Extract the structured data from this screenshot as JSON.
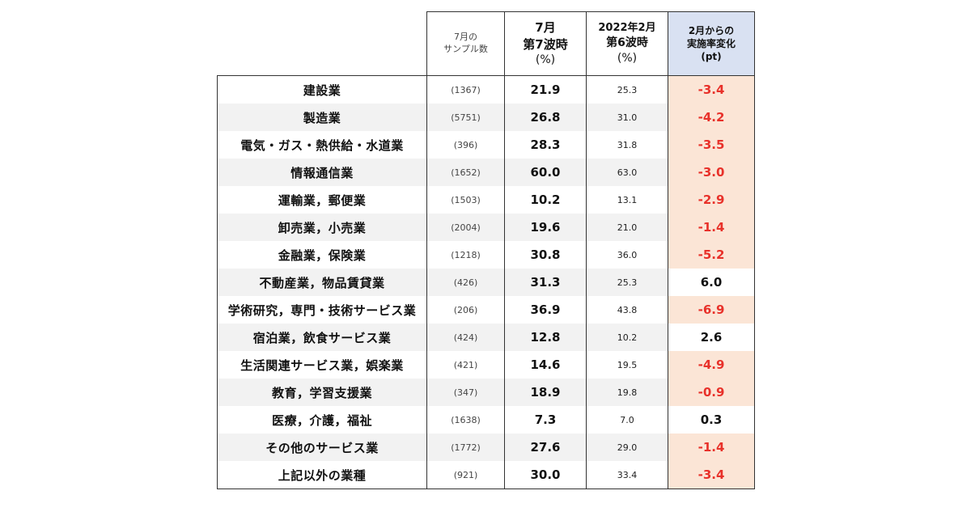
{
  "header": {
    "sample_line1": "7月の",
    "sample_line2": "サンプル数",
    "july_line1": "7月",
    "july_line2": "第7波時",
    "july_unit": "(%)",
    "feb_line1": "2022年2月",
    "feb_line2": "第6波時",
    "feb_unit": "(%)",
    "change_line1": "2月からの",
    "change_line2": "実施率変化",
    "change_unit": "(pt)"
  },
  "colors": {
    "negative_text": "#e8312a",
    "negative_fill": "#fbe5d6",
    "header_change_fill": "#d9e1f2",
    "stripe_fill": "#f2f2f2"
  },
  "chart_data": {
    "type": "table",
    "columns": [
      "",
      "7月の サンプル数",
      "7月 第7波時 (%)",
      "2022年2月 第6波時 (%)",
      "2月からの 実施率変化 (pt)"
    ],
    "rows": [
      {
        "industry": "建設業",
        "sample": "(1367)",
        "july": "21.9",
        "feb": "25.3",
        "change": "-3.4"
      },
      {
        "industry": "製造業",
        "sample": "(5751)",
        "july": "26.8",
        "feb": "31.0",
        "change": "-4.2"
      },
      {
        "industry": "電気・ガス・熱供給・水道業",
        "sample": "(396)",
        "july": "28.3",
        "feb": "31.8",
        "change": "-3.5"
      },
      {
        "industry": "情報通信業",
        "sample": "(1652)",
        "july": "60.0",
        "feb": "63.0",
        "change": "-3.0"
      },
      {
        "industry": "運輸業，郵便業",
        "sample": "(1503)",
        "july": "10.2",
        "feb": "13.1",
        "change": "-2.9"
      },
      {
        "industry": "卸売業，小売業",
        "sample": "(2004)",
        "july": "19.6",
        "feb": "21.0",
        "change": "-1.4"
      },
      {
        "industry": "金融業，保険業",
        "sample": "(1218)",
        "july": "30.8",
        "feb": "36.0",
        "change": "-5.2"
      },
      {
        "industry": "不動産業，物品賃貸業",
        "sample": "(426)",
        "july": "31.3",
        "feb": "25.3",
        "change": "6.0"
      },
      {
        "industry": "学術研究，専門・技術サービス業",
        "sample": "(206)",
        "july": "36.9",
        "feb": "43.8",
        "change": "-6.9"
      },
      {
        "industry": "宿泊業，飲食サービス業",
        "sample": "(424)",
        "july": "12.8",
        "feb": "10.2",
        "change": "2.6"
      },
      {
        "industry": "生活関連サービス業，娯楽業",
        "sample": "(421)",
        "july": "14.6",
        "feb": "19.5",
        "change": "-4.9"
      },
      {
        "industry": "教育，学習支援業",
        "sample": "(347)",
        "july": "18.9",
        "feb": "19.8",
        "change": "-0.9"
      },
      {
        "industry": "医療，介護，福祉",
        "sample": "(1638)",
        "july": "7.3",
        "feb": "7.0",
        "change": "0.3"
      },
      {
        "industry": "その他のサービス業",
        "sample": "(1772)",
        "july": "27.6",
        "feb": "29.0",
        "change": "-1.4"
      },
      {
        "industry": "上記以外の業種",
        "sample": "(921)",
        "july": "30.0",
        "feb": "33.4",
        "change": "-3.4"
      }
    ]
  }
}
